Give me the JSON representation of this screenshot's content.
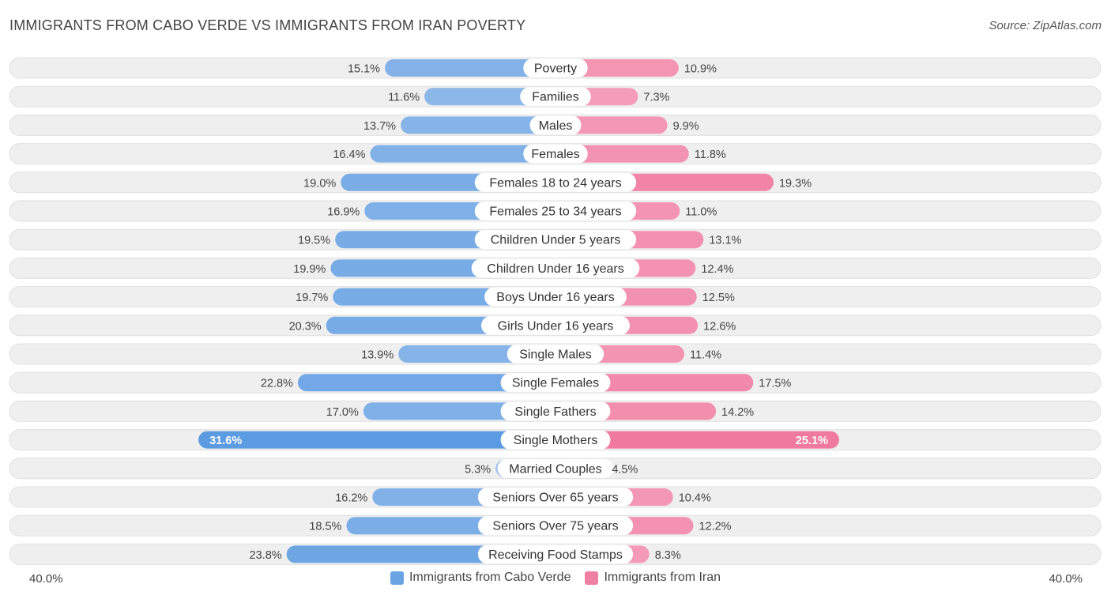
{
  "title": "IMMIGRANTS FROM CABO VERDE VS IMMIGRANTS FROM IRAN POVERTY",
  "source": "Source: ZipAtlas.com",
  "colors": {
    "left_light": "#a9c8ee",
    "left_dark": "#5b9be1",
    "right_light": "#f6aac4",
    "right_dark": "#ef6c96",
    "row_bg": "#efefef"
  },
  "chart_data": {
    "type": "bar",
    "orientation": "horizontal-diverging",
    "axis_max": 40.0,
    "axis_left_label": "40.0%",
    "axis_right_label": "40.0%",
    "legend": [
      {
        "name": "Immigrants from Cabo Verde",
        "color": "#6aa3e3"
      },
      {
        "name": "Immigrants from Iran",
        "color": "#f07fa4"
      }
    ],
    "categories": [
      "Poverty",
      "Families",
      "Males",
      "Females",
      "Females 18 to 24 years",
      "Females 25 to 34 years",
      "Children Under 5 years",
      "Children Under 16 years",
      "Boys Under 16 years",
      "Girls Under 16 years",
      "Single Males",
      "Single Females",
      "Single Fathers",
      "Single Mothers",
      "Married Couples",
      "Seniors Over 65 years",
      "Seniors Over 75 years",
      "Receiving Food Stamps"
    ],
    "series": [
      {
        "name": "Immigrants from Cabo Verde",
        "values": [
          15.1,
          11.6,
          13.7,
          16.4,
          19.0,
          16.9,
          19.5,
          19.9,
          19.7,
          20.3,
          13.9,
          22.8,
          17.0,
          31.6,
          5.3,
          16.2,
          18.5,
          23.8
        ],
        "labels": [
          "15.1%",
          "11.6%",
          "13.7%",
          "16.4%",
          "19.0%",
          "16.9%",
          "19.5%",
          "19.9%",
          "19.7%",
          "20.3%",
          "13.9%",
          "22.8%",
          "17.0%",
          "31.6%",
          "5.3%",
          "16.2%",
          "18.5%",
          "23.8%"
        ]
      },
      {
        "name": "Immigrants from Iran",
        "values": [
          10.9,
          7.3,
          9.9,
          11.8,
          19.3,
          11.0,
          13.1,
          12.4,
          12.5,
          12.6,
          11.4,
          17.5,
          14.2,
          25.1,
          4.5,
          10.4,
          12.2,
          8.3
        ],
        "labels": [
          "10.9%",
          "7.3%",
          "9.9%",
          "11.8%",
          "19.3%",
          "11.0%",
          "13.1%",
          "12.4%",
          "12.5%",
          "12.6%",
          "11.4%",
          "17.5%",
          "14.2%",
          "25.1%",
          "4.5%",
          "10.4%",
          "12.2%",
          "8.3%"
        ]
      }
    ]
  }
}
